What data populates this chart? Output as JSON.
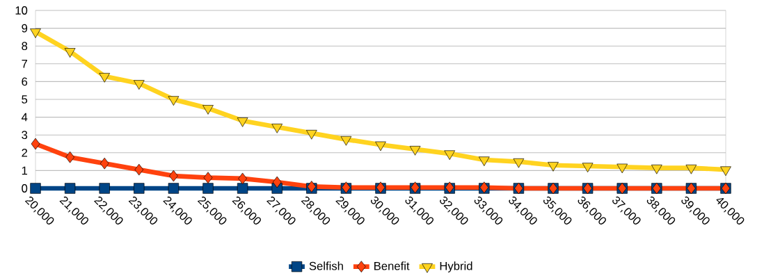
{
  "chart_data": {
    "type": "line",
    "categories": [
      "20,000",
      "21,000",
      "22,000",
      "23,000",
      "24,000",
      "25,000",
      "26,000",
      "27,000",
      "28,000",
      "29,000",
      "30,000",
      "31,000",
      "32,000",
      "33,000",
      "34,000",
      "35,000",
      "36,000",
      "37,000",
      "38,000",
      "39,000",
      "40,000"
    ],
    "series": [
      {
        "name": "Selfish",
        "color": "#004586",
        "marker": "square",
        "values": [
          0,
          0,
          0,
          0,
          0,
          0,
          0,
          0,
          0,
          0,
          0,
          0,
          0,
          0,
          0,
          0,
          0,
          0,
          0,
          0,
          0
        ]
      },
      {
        "name": "Benefit",
        "color": "#ff420e",
        "marker": "diamond",
        "values": [
          2.5,
          1.75,
          1.4,
          1.05,
          0.7,
          0.6,
          0.55,
          0.35,
          0.1,
          0.05,
          0.05,
          0.05,
          0.05,
          0.05,
          0,
          0,
          0,
          0,
          0,
          0,
          0
        ]
      },
      {
        "name": "Hybrid",
        "color": "#ffd320",
        "marker": "triangle",
        "values": [
          8.8,
          7.7,
          6.3,
          5.9,
          5.0,
          4.5,
          3.8,
          3.45,
          3.1,
          2.75,
          2.45,
          2.2,
          1.95,
          1.6,
          1.5,
          1.3,
          1.25,
          1.2,
          1.15,
          1.15,
          1.05
        ]
      }
    ],
    "ylim": [
      0,
      10
    ],
    "yticks": [
      0,
      1,
      2,
      3,
      4,
      5,
      6,
      7,
      8,
      9,
      10
    ],
    "grid": "y",
    "legend": "bottom",
    "line_style": "solid"
  }
}
